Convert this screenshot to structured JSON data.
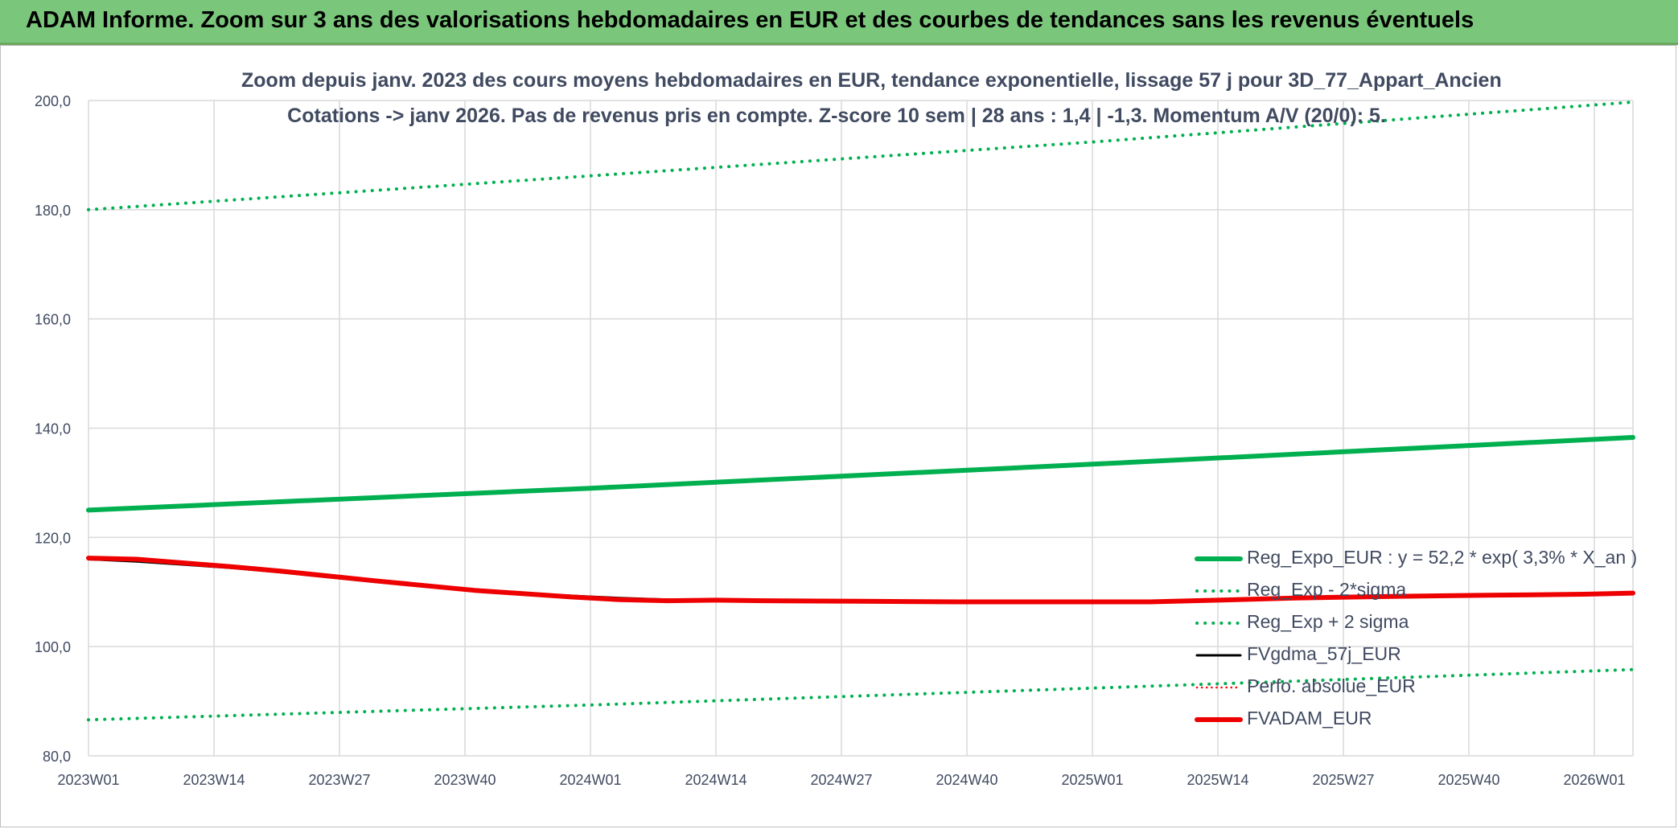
{
  "banner": {
    "title": "ADAM Informe. Zoom sur 3 ans des valorisations hebdomadaires en EUR et des courbes de tendances sans les revenus éventuels"
  },
  "chart_data": {
    "type": "line",
    "title_line1": "Zoom depuis janv. 2023 des cours moyens hebdomadaires en EUR, tendance exponentielle, lissage 57 j pour 3D_77_Appart_Ancien",
    "title_line2": "Cotations -> janv 2026. Pas de revenus pris en compte. Z-score 10 sem | 28 ans : 1,4 | -1,3. Momentum A/V (20/0): 5.",
    "ylim": [
      80,
      200
    ],
    "yticks": [
      "80,0",
      "100,0",
      "120,0",
      "140,0",
      "160,0",
      "180,0",
      "200,0"
    ],
    "ytick_values": [
      80,
      100,
      120,
      140,
      160,
      180,
      200
    ],
    "x_range": [
      0,
      160
    ],
    "xticks": [
      "2023W01",
      "2023W14",
      "2023W27",
      "2023W40",
      "2024W01",
      "2024W14",
      "2024W27",
      "2024W40",
      "2025W01",
      "2025W14",
      "2025W27",
      "2025W40",
      "2026W01"
    ],
    "xtick_positions": [
      0,
      13,
      26,
      39,
      52,
      65,
      78,
      91,
      104,
      117,
      130,
      143,
      156
    ],
    "grid": true,
    "legend_position": "bottom-right",
    "series": [
      {
        "name": "Reg_Expo_EUR : y = 52,2 * exp( 3,3% *  X_an )",
        "color": "#00b050",
        "style": "solid-thick",
        "x": [
          0,
          52,
          104,
          160
        ],
        "y": [
          125.0,
          129.0,
          133.4,
          138.3
        ]
      },
      {
        "name": "Reg_Exp - 2*sigma",
        "color": "#00b050",
        "style": "dotted",
        "x": [
          0,
          52,
          104,
          160
        ],
        "y": [
          86.6,
          89.3,
          92.4,
          95.8
        ]
      },
      {
        "name": "Reg_Exp + 2 sigma",
        "color": "#00b050",
        "style": "dotted",
        "x": [
          0,
          52,
          104,
          160
        ],
        "y": [
          180.0,
          186.2,
          192.4,
          199.7
        ]
      },
      {
        "name": "FVgdma_57j_EUR",
        "color": "#000000",
        "style": "solid",
        "x": [
          0,
          5,
          10,
          15,
          20,
          30,
          40,
          50,
          55,
          60,
          65,
          70,
          80,
          90,
          100,
          110,
          117,
          125,
          135,
          145,
          155,
          160
        ],
        "y": [
          116.0,
          115.6,
          115.0,
          114.4,
          113.6,
          111.8,
          110.2,
          109.3,
          108.9,
          108.6,
          108.5,
          108.4,
          108.3,
          108.2,
          108.2,
          108.2,
          108.5,
          108.9,
          109.2,
          109.4,
          109.6,
          109.7
        ]
      },
      {
        "name": "Perfo. absolue_EUR",
        "color": "#ff0000",
        "style": "dotted-thin",
        "x": [
          0,
          5,
          10,
          15,
          20,
          30,
          40,
          50,
          55,
          60,
          65,
          70,
          80,
          90,
          100,
          110,
          117,
          125,
          135,
          145,
          155,
          160
        ],
        "y": [
          116.2,
          115.9,
          115.3,
          114.6,
          113.8,
          112.0,
          110.3,
          109.3,
          108.8,
          108.4,
          108.5,
          108.4,
          108.3,
          108.2,
          108.2,
          108.2,
          108.5,
          108.9,
          109.2,
          109.4,
          109.6,
          109.7
        ]
      },
      {
        "name": "FVADAM_EUR",
        "color": "#ee0000",
        "style": "solid-thick",
        "x": [
          0,
          5,
          10,
          15,
          20,
          30,
          40,
          50,
          55,
          60,
          65,
          70,
          80,
          90,
          100,
          110,
          117,
          125,
          135,
          145,
          155,
          160
        ],
        "y": [
          116.2,
          116.0,
          115.3,
          114.6,
          113.8,
          112.0,
          110.3,
          109.1,
          108.6,
          108.4,
          108.5,
          108.4,
          108.3,
          108.2,
          108.2,
          108.2,
          108.5,
          108.9,
          109.2,
          109.4,
          109.6,
          109.8
        ]
      }
    ]
  }
}
